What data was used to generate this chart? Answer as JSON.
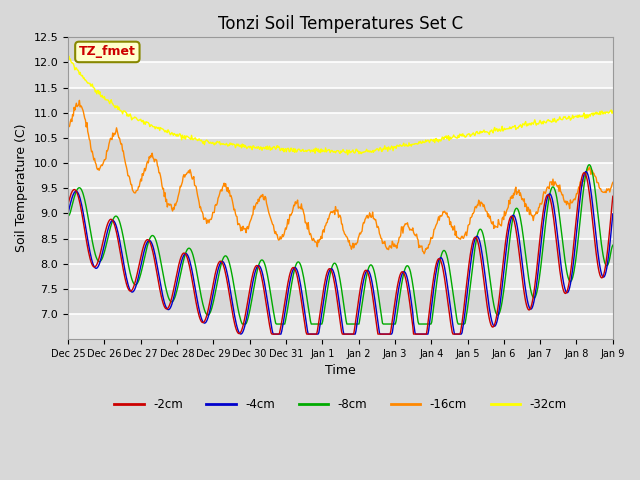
{
  "title": "Tonzi Soil Temperatures Set C",
  "xlabel": "Time",
  "ylabel": "Soil Temperature (C)",
  "ylim": [
    6.5,
    12.5
  ],
  "y_ticks": [
    7.0,
    7.5,
    8.0,
    8.5,
    9.0,
    9.5,
    10.0,
    10.5,
    11.0,
    11.5,
    12.0,
    12.5
  ],
  "legend_labels": [
    "-2cm",
    "-4cm",
    "-8cm",
    "-16cm",
    "-32cm"
  ],
  "line_colors": [
    "#cc0000",
    "#0000cc",
    "#00aa00",
    "#ff8800",
    "#ffff00"
  ],
  "annotation_text": "TZ_fmet",
  "annotation_color": "#cc0000",
  "annotation_bg": "#ffffcc",
  "annotation_border": "#888800",
  "plot_bg_color": "#e8e8e8",
  "grid_color": "#ffffff",
  "title_fontsize": 12,
  "x_tick_labels": [
    "Dec 25",
    "Dec 26",
    "Dec 27",
    "Dec 28",
    "Dec 29",
    "Dec 30",
    "Dec 31",
    "Jan 1",
    "Jan 2",
    "Jan 3",
    "Jan 4",
    "Jan 5",
    "Jan 6",
    "Jan 7",
    "Jan 8",
    "Jan 9"
  ],
  "n_days": 15,
  "samples_per_day": 48
}
